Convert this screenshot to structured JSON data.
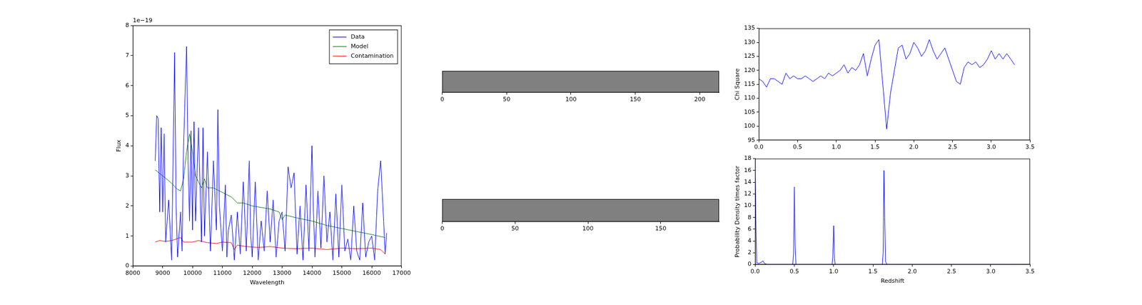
{
  "chart_data": [
    {
      "type": "line",
      "x_label": "Wavelength",
      "y_label": "Flux",
      "annotations": [
        "1e−19"
      ],
      "xlim": [
        8000,
        17000
      ],
      "xticks": [
        8000,
        9000,
        10000,
        11000,
        12000,
        13000,
        14000,
        15000,
        16000,
        17000
      ],
      "ylim": [
        0,
        8
      ],
      "yticks": [
        0,
        1,
        2,
        3,
        4,
        5,
        6,
        7,
        8
      ],
      "grid": false,
      "legend": "upper right",
      "series": [
        {
          "name": "Data",
          "color": "#0000ff",
          "x": [
            8750,
            8800,
            8850,
            8900,
            8950,
            9000,
            9050,
            9100,
            9200,
            9300,
            9400,
            9450,
            9500,
            9600,
            9650,
            9700,
            9800,
            9850,
            9900,
            9950,
            10000,
            10050,
            10100,
            10200,
            10300,
            10350,
            10400,
            10500,
            10600,
            10700,
            10800,
            10850,
            10900,
            11000,
            11100,
            11150,
            11200,
            11300,
            11400,
            11500,
            11600,
            11700,
            11800,
            11900,
            11950,
            12000,
            12100,
            12200,
            12300,
            12400,
            12500,
            12600,
            12700,
            12800,
            12900,
            13000,
            13100,
            13200,
            13300,
            13400,
            13500,
            13600,
            13700,
            13800,
            13900,
            14000,
            14050,
            14100,
            14200,
            14300,
            14400,
            14500,
            14600,
            14700,
            14800,
            14900,
            15000,
            15100,
            15200,
            15300,
            15400,
            15500,
            15600,
            15700,
            15800,
            15900,
            16000,
            16100,
            16200,
            16300,
            16400,
            16450,
            16500
          ],
          "values": [
            3.5,
            5.0,
            4.9,
            1.8,
            4.6,
            1.8,
            4.4,
            0.8,
            2.2,
            0.2,
            7.1,
            2.0,
            0.3,
            1.8,
            0.5,
            4.0,
            7.3,
            3.5,
            1.5,
            4.5,
            1.2,
            4.8,
            1.5,
            4.6,
            0.8,
            4.6,
            1.0,
            3.8,
            0.5,
            3.5,
            1.2,
            5.2,
            2.0,
            0.5,
            2.7,
            0.3,
            1.2,
            1.7,
            0.2,
            1.8,
            0.4,
            2.8,
            0.5,
            3.5,
            1.0,
            0.3,
            2.8,
            0.2,
            1.5,
            0.5,
            2.5,
            0.8,
            2.2,
            0.3,
            1.5,
            1.8,
            0.5,
            3.3,
            2.6,
            3.1,
            0.4,
            2.0,
            0.2,
            2.7,
            0.5,
            4.0,
            1.8,
            0.3,
            2.5,
            0.6,
            3.0,
            0.8,
            1.8,
            0.2,
            2.4,
            0.3,
            2.7,
            0.5,
            0.9,
            0.2,
            2.0,
            0.5,
            0.2,
            2.1,
            0.3,
            0.8,
            1.0,
            0.2,
            2.5,
            3.5,
            1.5,
            0.4,
            1.1
          ]
        },
        {
          "name": "Model",
          "color": "#008000",
          "x": [
            8750,
            9000,
            9250,
            9500,
            9600,
            9700,
            9800,
            9900,
            10000,
            10100,
            10200,
            10300,
            10400,
            10500,
            10700,
            10900,
            11100,
            11300,
            11500,
            11700,
            12000,
            12300,
            12600,
            12900,
            13000,
            13100,
            13500,
            14000,
            14500,
            15000,
            15500,
            16000,
            16450
          ],
          "values": [
            3.2,
            3.0,
            2.8,
            2.55,
            2.5,
            2.9,
            3.8,
            4.4,
            3.8,
            3.0,
            2.8,
            2.6,
            2.9,
            2.6,
            2.6,
            2.5,
            2.4,
            2.3,
            2.1,
            2.1,
            2.0,
            1.95,
            1.9,
            1.8,
            1.55,
            1.7,
            1.6,
            1.5,
            1.35,
            1.25,
            1.15,
            1.05,
            0.95
          ]
        },
        {
          "name": "Contamination",
          "color": "#ff0000",
          "x": [
            8750,
            8900,
            9100,
            9300,
            9600,
            9700,
            10000,
            10200,
            10500,
            10800,
            11000,
            11300,
            11400,
            11500,
            11800,
            12200,
            12600,
            13000,
            13500,
            14000,
            14500,
            15000,
            15500,
            16000,
            16300,
            16450
          ],
          "values": [
            0.8,
            0.85,
            0.82,
            0.85,
            0.95,
            0.8,
            0.8,
            0.85,
            0.78,
            0.75,
            0.8,
            0.78,
            0.55,
            0.7,
            0.65,
            0.62,
            0.65,
            0.6,
            0.58,
            0.6,
            0.55,
            0.6,
            0.58,
            0.6,
            0.55,
            0.4
          ]
        }
      ]
    },
    {
      "type": "image",
      "color": "#808080",
      "tick_labels": "x",
      "xlim": [
        0,
        215
      ],
      "xticks": [
        0,
        50,
        100,
        150,
        200
      ]
    },
    {
      "type": "image",
      "color": "#808080",
      "tick_labels": "x",
      "xlim": [
        0,
        190
      ],
      "xticks": [
        0,
        50,
        100,
        150
      ]
    },
    {
      "type": "line",
      "y_label": "Chi Square",
      "grid": false,
      "xlim": [
        0,
        3.5
      ],
      "xticks": [
        {
          "value": 0,
          "label": "0.0"
        },
        0.5,
        {
          "value": 1,
          "label": "1.0"
        },
        1.5,
        {
          "value": 2,
          "label": "2.0"
        },
        2.5,
        {
          "value": 3,
          "label": "3.0"
        },
        3.5
      ],
      "ylim": [
        95,
        135
      ],
      "yticks": [
        95,
        100,
        105,
        110,
        115,
        120,
        125,
        130,
        135
      ],
      "series": [
        {
          "color": "#0000ff",
          "x": [
            0,
            0.05,
            0.1,
            0.15,
            0.2,
            0.25,
            0.3,
            0.35,
            0.4,
            0.45,
            0.5,
            0.55,
            0.6,
            0.65,
            0.7,
            0.75,
            0.8,
            0.85,
            0.9,
            0.95,
            1.0,
            1.05,
            1.1,
            1.15,
            1.2,
            1.25,
            1.3,
            1.35,
            1.4,
            1.45,
            1.5,
            1.55,
            1.6,
            1.65,
            1.7,
            1.75,
            1.8,
            1.85,
            1.9,
            1.95,
            2.0,
            2.05,
            2.1,
            2.15,
            2.2,
            2.25,
            2.3,
            2.35,
            2.4,
            2.45,
            2.5,
            2.55,
            2.6,
            2.65,
            2.7,
            2.75,
            2.8,
            2.85,
            2.9,
            2.95,
            3.0,
            3.05,
            3.1,
            3.15,
            3.2,
            3.25,
            3.3
          ],
          "values": [
            117,
            116,
            114,
            117,
            117,
            116,
            115,
            119,
            117,
            118,
            117,
            117,
            118,
            117,
            116,
            117,
            118,
            117,
            119,
            118,
            119,
            120,
            122,
            119,
            121,
            120,
            122,
            126,
            118,
            124,
            129,
            131,
            115,
            99,
            112,
            120,
            128,
            129,
            124,
            126,
            130,
            128,
            125,
            127,
            131,
            127,
            124,
            126,
            128,
            124,
            120,
            116,
            115,
            121,
            123,
            122,
            123,
            121,
            122,
            124,
            127,
            124,
            126,
            124,
            126,
            124,
            122
          ]
        }
      ]
    },
    {
      "type": "line",
      "x_label": "Redshift",
      "y_label": "Probability Density times factor",
      "grid": false,
      "xlim": [
        0,
        3.5
      ],
      "xticks": [
        {
          "value": 0,
          "label": "0.0"
        },
        0.5,
        {
          "value": 1,
          "label": "1.0"
        },
        1.5,
        {
          "value": 2,
          "label": "2.0"
        },
        2.5,
        {
          "value": 3,
          "label": "3.0"
        },
        3.5
      ],
      "ylim": [
        0,
        18
      ],
      "yticks": [
        0,
        2,
        4,
        6,
        8,
        10,
        12,
        14,
        16,
        18
      ],
      "series": [
        {
          "color": "#0000ff",
          "x": [
            0,
            0.01,
            0.02,
            0.05,
            0.08,
            0.1,
            0.12,
            0.15,
            0.3,
            0.48,
            0.49,
            0.5,
            0.51,
            0.52,
            0.98,
            0.99,
            1.0,
            1.01,
            1.02,
            1.62,
            1.63,
            1.64,
            1.65,
            1.66,
            1.68,
            2.0,
            3.3
          ],
          "values": [
            17.5,
            8,
            0.3,
            0.2,
            0.4,
            0.6,
            0.2,
            0,
            0,
            0,
            2,
            13.2,
            3,
            0,
            0,
            1.5,
            6.6,
            1,
            0,
            0,
            2,
            16,
            8,
            0.5,
            0,
            0,
            0
          ]
        }
      ]
    }
  ]
}
